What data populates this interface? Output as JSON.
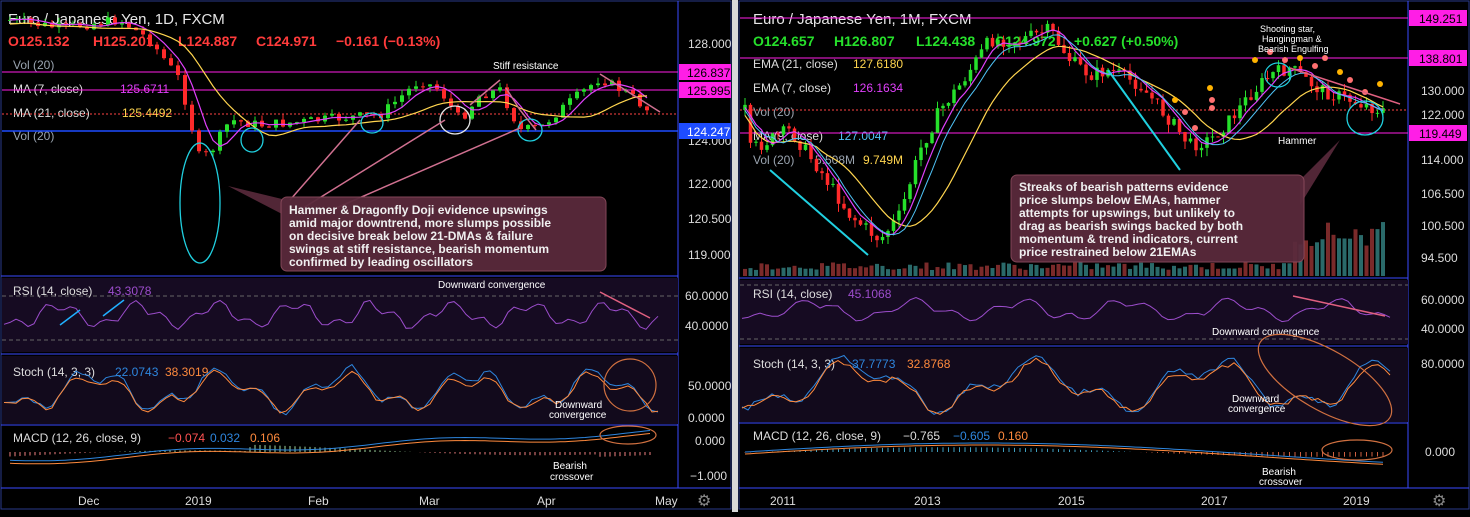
{
  "left": {
    "title": "Euro / Japanese Yen, 1D, FXCM",
    "ohlc": {
      "o": "O125.132",
      "h": "H125.201",
      "l": "L124.887",
      "c": "C124.971",
      "chg": "−0.161 (−0.13%)"
    },
    "legend": [
      {
        "label": "Vol (20)",
        "value": "",
        "color": "#9aa4b0"
      },
      {
        "label": "MA (7, close)",
        "value": "125.6711",
        "color": "#e040fb"
      },
      {
        "label": "MA (21, close)",
        "value": "125.4492",
        "color": "#ffd54f"
      },
      {
        "label": "Vol (20)",
        "value": "",
        "color": "#9aa4b0"
      }
    ],
    "price_axis": [
      "128.000",
      "122.000",
      "120.500",
      "119.000",
      "124.000"
    ],
    "price_badges": [
      {
        "label": "126.837",
        "color": "#ff1ee6"
      },
      {
        "label": "125.995",
        "color": "#ff1ee6"
      },
      {
        "label": "124.247",
        "color": "#1e4cff"
      }
    ],
    "x_labels": [
      "Dec",
      "2019",
      "Feb",
      "Mar",
      "Apr",
      "May"
    ],
    "annotation_stiff": "Stiff resistance",
    "callout_lines": [
      "Hammer & Dragonfly Doji evidence upswings",
      "amid major downtrend, more slumps possible",
      "on decisive break below 21-DMAs & failure",
      "swings at stiff resistance, bearish momentum",
      "confirmed by leading oscillators"
    ],
    "rsi": {
      "label": "RSI (14, close)",
      "value": "43.3078",
      "axis": [
        "60.0000",
        "40.0000"
      ],
      "note": "Downward convergence"
    },
    "stoch": {
      "label": "Stoch (14, 3, 3)",
      "k": "22.0743",
      "d": "38.3019",
      "axis": [
        "50.0000",
        "0.0000"
      ],
      "note": [
        "Downward",
        "convergence"
      ]
    },
    "macd": {
      "label": "MACD (12, 26, close, 9)",
      "v1": "−0.074",
      "v2": "0.032",
      "v3": "0.106",
      "axis": [
        "0.000",
        "−1.000"
      ],
      "note": [
        "Bearish",
        "crossover"
      ]
    }
  },
  "right": {
    "title": "Euro / Japanese Yen, 1M, FXCM",
    "ohlc": {
      "o": "O124.657",
      "h": "H126.807",
      "l": "L124.438",
      "c": "C124.972",
      "chg": "+0.627 (+0.50%)"
    },
    "legend": [
      {
        "label": "EMA (21, close)",
        "value": "127.6180",
        "color": "#ffd54f"
      },
      {
        "label": "EMA (7, close)",
        "value": "126.1634",
        "color": "#e040fb"
      },
      {
        "label": "Vol (20)",
        "value": "",
        "color": "#9aa4b0"
      },
      {
        "label": "MA (9, close)",
        "value": "127.0047",
        "color": "#4fc3f7"
      },
      {
        "label": "Vol (20)",
        "value": "5.508M",
        "color": "#9aa4b0"
      }
    ],
    "vol_extra": "9.749M",
    "price_axis": [
      "130.000",
      "122.000",
      "114.000",
      "106.500",
      "100.500",
      "94.500"
    ],
    "price_badges": [
      {
        "label": "149.251",
        "color": "#ff1ee6"
      },
      {
        "label": "138.801",
        "color": "#ff1ee6"
      },
      {
        "label": "119.449",
        "color": "#ff1ee6"
      }
    ],
    "x_labels": [
      "2011",
      "2013",
      "2015",
      "2017",
      "2019"
    ],
    "annotation_top": [
      "Shooting star,",
      "Hangingman &",
      "Bearish Engulfing"
    ],
    "annotation_hammer": "Hammer",
    "callout_lines": [
      "Streaks of bearish patterns evidence",
      "price slumps below EMAs, hammer",
      "attempts for upswings, but unlikely to",
      "drag as bearish swings backed by both",
      "momentum & trend indicators, current",
      "price restrained below 21EMAs"
    ],
    "rsi": {
      "label": "RSI (14, close)",
      "value": "45.1068",
      "axis": [
        "60.0000",
        "40.0000"
      ],
      "note": "Downward convergence"
    },
    "stoch": {
      "label": "Stoch (14, 3, 3)",
      "k": "37.7773",
      "d": "32.8768",
      "axis": [
        "80.0000"
      ],
      "note": [
        "Downward",
        "convergence"
      ]
    },
    "macd": {
      "label": "MACD (12, 26, close, 9)",
      "v1": "−0.765",
      "v2": "−0.605",
      "v3": "0.160",
      "axis": [
        "0.000"
      ],
      "note": [
        "Bearish",
        "crossover"
      ]
    }
  },
  "colors": {
    "bull": "#26e02b",
    "bear": "#ff2a2a",
    "ma_fast": "#e040fb",
    "ma_slow": "#ffd54f",
    "ma9": "#4fc3f7",
    "rsi": "#9c4dcc",
    "stoch_k": "#2e86de",
    "stoch_d": "#ff8a3d",
    "callout_bg": "#5a2a3c"
  }
}
